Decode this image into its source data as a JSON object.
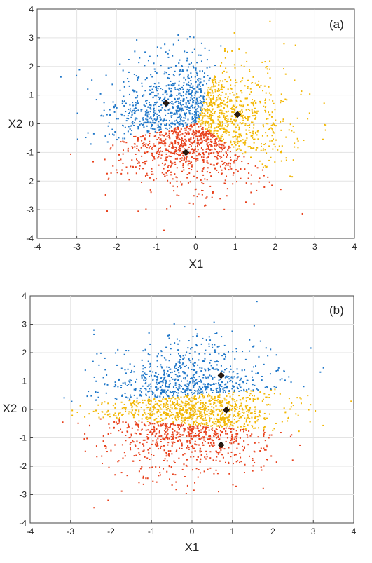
{
  "chart_data": [
    {
      "type": "scatter",
      "panel_label": "(a)",
      "xlabel": "X1",
      "ylabel": "X2",
      "xlim": [
        -4,
        4
      ],
      "ylim": [
        -4,
        4
      ],
      "xticks": [
        "-4",
        "-3",
        "-2",
        "-1",
        "0",
        "1",
        "2",
        "3",
        "4"
      ],
      "yticks": [
        "-4",
        "-3",
        "-2",
        "-1",
        "0",
        "1",
        "2",
        "3",
        "4"
      ],
      "grid": true,
      "cluster_colors": {
        "blue": "#1f77c9",
        "orange": "#f2b705",
        "red": "#e8411c"
      },
      "centroids": [
        {
          "cluster": "blue",
          "x": -0.75,
          "y": 0.72
        },
        {
          "cluster": "orange",
          "x": 1.05,
          "y": 0.32
        },
        {
          "cluster": "red",
          "x": -0.25,
          "y": -1.0
        }
      ]
    },
    {
      "type": "scatter",
      "panel_label": "(b)",
      "xlabel": "X1",
      "ylabel": "X2",
      "xlim": [
        -4,
        4
      ],
      "ylim": [
        -4,
        4
      ],
      "xticks": [
        "-4",
        "-3",
        "-2",
        "-1",
        "0",
        "1",
        "2",
        "3",
        "4"
      ],
      "yticks": [
        "-4",
        "-3",
        "-2",
        "-1",
        "0",
        "1",
        "2",
        "3",
        "4"
      ],
      "grid": true,
      "cluster_colors": {
        "blue": "#1f77c9",
        "orange": "#f2b705",
        "red": "#e8411c"
      },
      "centroids": [
        {
          "cluster": "blue",
          "x": 0.72,
          "y": 1.2
        },
        {
          "cluster": "orange",
          "x": 0.85,
          "y": -0.02
        },
        {
          "cluster": "red",
          "x": 0.72,
          "y": -1.25
        }
      ]
    }
  ]
}
